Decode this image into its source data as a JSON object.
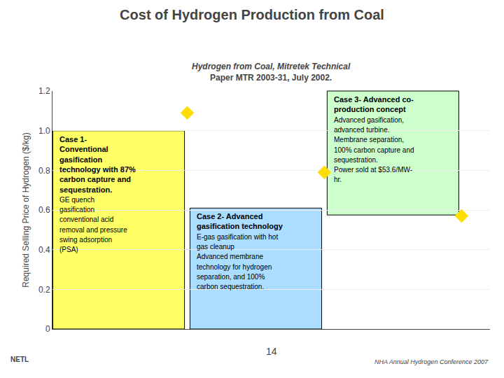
{
  "chart_data": {
    "type": "scatter",
    "title": "Cost of Hydrogen Production from Coal",
    "subtitle": "Hydrogen from Coal, Mitretek Technical\nPaper MTR 2003-31, July 2002.",
    "y_label": "Required Selling Price of Hydrogen ($/kg)",
    "categories": [
      null,
      null,
      null
    ],
    "values": [
      1.09,
      0.79,
      0.57
    ],
    "color": "#ffdd00",
    "marker": "diamond",
    "ylim": [
      0,
      1.2
    ],
    "yticks": [
      0,
      0.2,
      0.4,
      0.6,
      0.8,
      {
        "value": 1.0,
        "label": "1.0"
      },
      1.2
    ],
    "grid": true,
    "tick_labels": "y",
    "annotations": [
      {
        "title": "Case 1-\nConventional\ngasification\ntechnology with 87%\ncarbon capture and\nsequestration.",
        "text": "GE quench\ngasification\nconventional acid\nremoval and pressure\nswing adsorption\n(PSA)",
        "color": "#ffff66"
      },
      {
        "title": "Case 2- Advanced\ngasification technology",
        "text": "E-gas gasification with hot\ngas cleanup\nAdvanced membrane\ntechnology for hydrogen\nseparation, and 100%\ncarbon sequestration.",
        "color": "#aaddff"
      },
      {
        "title": "Case 3- Advanced co-\nproduction concept",
        "text": "Advanced gasification,\nadvanced turbine.\nMembrane separation,\n100% carbon capture and\nsequestration.\nPower sold at $53.6/MW-\nhr.",
        "color": "#ccffcc"
      },
      {
        "text": "14"
      },
      {
        "text": "NHA Annual Hydrogen Conference 2007"
      },
      {
        "text": "NETL"
      }
    ]
  }
}
